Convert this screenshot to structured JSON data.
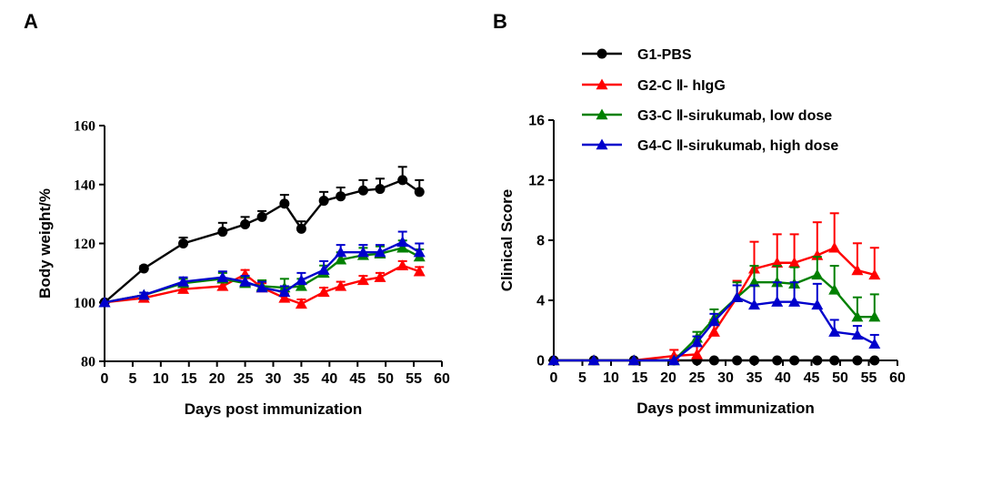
{
  "panels": [
    {
      "letter": "A",
      "chart_data": {
        "type": "line",
        "xlabel": "Days post immunization",
        "ylabel": "Body weight/%",
        "xlim": [
          0,
          60
        ],
        "ylim": [
          80,
          160
        ],
        "xticks": [
          0,
          5,
          10,
          15,
          20,
          25,
          30,
          35,
          40,
          45,
          50,
          55,
          60
        ],
        "yticks": [
          80,
          100,
          120,
          140,
          160
        ],
        "grid": false,
        "error_bars": "upper",
        "series": [
          {
            "name": "G1-PBS",
            "color": "#000000",
            "marker": "circle",
            "x": [
              0,
              7,
              14,
              21,
              25,
              28,
              32,
              35,
              39,
              42,
              46,
              49,
              53,
              56
            ],
            "y": [
              100,
              111.5,
              120,
              124,
              126.5,
              129,
              133.5,
              125,
              134.5,
              136,
              138,
              138.5,
              141.5,
              137.5
            ],
            "err": [
              0,
              0.8,
              2,
              3,
              2.5,
              2,
              3,
              2.5,
              3,
              3,
              3.5,
              3.5,
              4.5,
              4
            ]
          },
          {
            "name": "G2-C Ⅱ- hIgG",
            "color": "#ff0000",
            "marker": "triangle",
            "x": [
              0,
              7,
              14,
              21,
              25,
              28,
              32,
              35,
              39,
              42,
              46,
              49,
              53,
              56
            ],
            "y": [
              100,
              101.5,
              104.5,
              105.5,
              109.5,
              105,
              101.5,
              99.5,
              103.5,
              105.5,
              107.5,
              108.5,
              112.5,
              110.5
            ],
            "err": [
              0,
              0.8,
              1.5,
              1.5,
              1.5,
              1.5,
              1.5,
              1.5,
              1.5,
              1.5,
              1.5,
              1.5,
              1.5,
              1.5
            ]
          },
          {
            "name": "G3-C Ⅱ-sirukumab, low dose",
            "color": "#008000",
            "marker": "triangle",
            "x": [
              0,
              7,
              14,
              21,
              25,
              28,
              32,
              35,
              39,
              42,
              46,
              49,
              53,
              56
            ],
            "y": [
              100,
              102.5,
              106.5,
              108,
              106.5,
              105.5,
              105,
              105.5,
              110,
              114.5,
              116,
              116.5,
              118.5,
              115.5
            ],
            "err": [
              0,
              0.8,
              1.5,
              2,
              2,
              2,
              3,
              2.5,
              2.5,
              2.5,
              2.5,
              2.5,
              2.5,
              2.5
            ]
          },
          {
            "name": "G4-C Ⅱ-sirukumab, high dose",
            "color": "#0000cc",
            "marker": "triangle",
            "x": [
              0,
              7,
              14,
              21,
              25,
              28,
              32,
              35,
              39,
              42,
              46,
              49,
              53,
              56
            ],
            "y": [
              100,
              102.5,
              107,
              108.5,
              107,
              105,
              103.5,
              107.5,
              111,
              117,
              117,
              117,
              120.5,
              117
            ],
            "err": [
              0,
              0.8,
              1.5,
              2,
              2,
              2,
              2,
              2.5,
              3,
              2.5,
              2.5,
              2.5,
              3.5,
              3
            ]
          }
        ]
      }
    },
    {
      "letter": "B",
      "chart_data": {
        "type": "line",
        "xlabel": "Days post immunization",
        "ylabel": "Clinical Score",
        "xlim": [
          0,
          60
        ],
        "ylim": [
          0,
          16
        ],
        "xticks": [
          0,
          5,
          10,
          15,
          20,
          25,
          30,
          35,
          40,
          45,
          50,
          55,
          60
        ],
        "yticks": [
          0,
          4,
          8,
          12,
          16
        ],
        "grid": false,
        "legend": "top",
        "error_bars": "upper",
        "series": [
          {
            "name": "G1-PBS",
            "color": "#000000",
            "marker": "circle",
            "x": [
              0,
              7,
              14,
              21,
              25,
              28,
              32,
              35,
              39,
              42,
              46,
              49,
              53,
              56
            ],
            "y": [
              0,
              0,
              0,
              0,
              0,
              0,
              0,
              0,
              0,
              0,
              0,
              0,
              0,
              0
            ],
            "err": [
              0,
              0,
              0,
              0,
              0,
              0,
              0,
              0,
              0,
              0,
              0,
              0,
              0,
              0
            ]
          },
          {
            "name": "G2-C Ⅱ- hIgG",
            "color": "#ff0000",
            "marker": "triangle",
            "x": [
              0,
              7,
              14,
              21,
              25,
              28,
              32,
              35,
              39,
              42,
              46,
              49,
              53,
              56
            ],
            "y": [
              0,
              0,
              0,
              0.3,
              0.4,
              1.9,
              4.2,
              6.1,
              6.5,
              6.5,
              7,
              7.5,
              6,
              5.7
            ],
            "err": [
              0,
              0,
              0,
              0.4,
              0.6,
              0.8,
              1.1,
              1.8,
              1.9,
              1.9,
              2.2,
              2.3,
              1.8,
              1.8
            ]
          },
          {
            "name": "G3-C Ⅱ-sirukumab, low dose",
            "color": "#008000",
            "marker": "triangle",
            "x": [
              0,
              7,
              14,
              21,
              25,
              28,
              32,
              35,
              39,
              42,
              46,
              49,
              53,
              56
            ],
            "y": [
              0,
              0,
              0,
              0,
              1.5,
              2.8,
              4.2,
              5.2,
              5.2,
              5.1,
              5.7,
              4.7,
              2.9,
              2.9
            ],
            "err": [
              0,
              0,
              0,
              0,
              0.4,
              0.6,
              1,
              1.1,
              1.1,
              1.1,
              1.2,
              1.6,
              1.3,
              1.5
            ]
          },
          {
            "name": "G4-C Ⅱ-sirukumab, high dose",
            "color": "#0000cc",
            "marker": "triangle",
            "x": [
              0,
              7,
              14,
              21,
              25,
              28,
              32,
              35,
              39,
              42,
              46,
              49,
              53,
              56
            ],
            "y": [
              0,
              0,
              0,
              0,
              1.2,
              2.6,
              4.2,
              3.7,
              3.9,
              3.9,
              3.7,
              1.9,
              1.7,
              1.1
            ],
            "err": [
              0,
              0,
              0,
              0,
              0.4,
              0.5,
              0.8,
              1.3,
              1.3,
              1.3,
              1.4,
              0.8,
              0.6,
              0.6
            ]
          }
        ]
      }
    }
  ]
}
